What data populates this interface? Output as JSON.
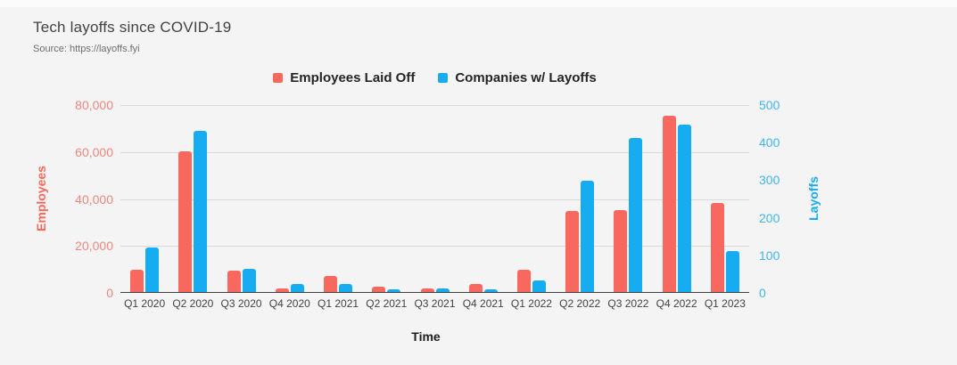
{
  "header": {
    "title": "Tech layoffs since COVID-19",
    "source": "Source: https://layoffs.fyi"
  },
  "chart_data": {
    "type": "bar",
    "title": "Tech layoffs since COVID-19",
    "subtitle": "Source: https://layoffs.fyi",
    "xlabel": "Time",
    "grid": true,
    "legend_position": "top",
    "categories": [
      "Q1 2020",
      "Q2 2020",
      "Q3 2020",
      "Q4 2020",
      "Q1 2021",
      "Q2 2021",
      "Q3 2021",
      "Q4 2021",
      "Q1 2022",
      "Q2 2022",
      "Q3 2022",
      "Q4 2022",
      "Q1 2023"
    ],
    "series": [
      {
        "name": "Employees Laid Off",
        "axis": "left",
        "color": "#f8685f",
        "values": [
          9500,
          60000,
          9200,
          1500,
          6700,
          2400,
          1700,
          3300,
          9600,
          34500,
          35000,
          75000,
          37800
        ]
      },
      {
        "name": "Companies w/ Layoffs",
        "axis": "right",
        "color": "#15acf2",
        "values": [
          119,
          428,
          61,
          22,
          22,
          6,
          10,
          7,
          32,
          297,
          410,
          445,
          110
        ]
      }
    ],
    "left_axis": {
      "title": "Employees",
      "min": 0,
      "max": 80000,
      "ticks": [
        "0",
        "20,000",
        "40,000",
        "60,000",
        "80,000"
      ],
      "title_color": "#f8685f",
      "tick_color": "#f0867e"
    },
    "right_axis": {
      "title": "Layoffs",
      "min": 0,
      "max": 500,
      "ticks": [
        "0",
        "100",
        "200",
        "300",
        "400",
        "500"
      ],
      "title_color": "#15acf2",
      "tick_color": "#41b5ee"
    },
    "colors": {
      "background": "#f4f4f4",
      "gridline": "#d9d9d9",
      "axis_line": "#424242"
    }
  }
}
